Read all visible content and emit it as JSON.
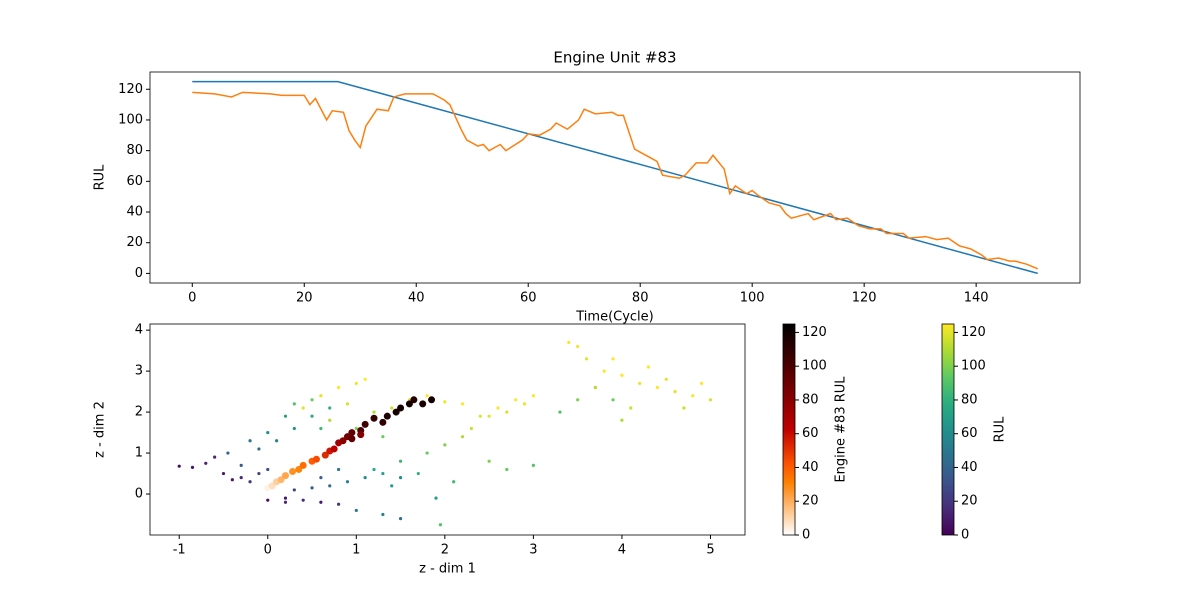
{
  "chart_data": [
    {
      "type": "line",
      "title": "Engine Unit #83",
      "xlabel": "Time(Cycle)",
      "ylabel": "RUL",
      "xlim": [
        -7.55,
        158.55
      ],
      "ylim": [
        -6.25,
        131.25
      ],
      "xticks": [
        0,
        20,
        40,
        60,
        80,
        100,
        120,
        140
      ],
      "yticks": [
        0,
        20,
        40,
        60,
        80,
        100,
        120
      ],
      "series": [
        {
          "color": "#1f77b4",
          "x": [
            0,
            26,
            151
          ],
          "values": [
            125,
            125,
            0
          ]
        },
        {
          "color": "#ff7f0e",
          "x": [
            0,
            4,
            7,
            9,
            14,
            16,
            20,
            21,
            22,
            24,
            25,
            27,
            28,
            29,
            30,
            31,
            33,
            35,
            36,
            38,
            40,
            43,
            45,
            46,
            48,
            49,
            51,
            52,
            53,
            55,
            56,
            59,
            60,
            62,
            64,
            65,
            67,
            69,
            70,
            72,
            75,
            76,
            77,
            79,
            80,
            82,
            83,
            84,
            87,
            88,
            90,
            92,
            93,
            95,
            96,
            97,
            99,
            100,
            101,
            103,
            105,
            106,
            107,
            110,
            111,
            114,
            115,
            117,
            119,
            121,
            123,
            124,
            127,
            128,
            131,
            133,
            135,
            137,
            139,
            141,
            142,
            144,
            146,
            147,
            149,
            151
          ],
          "values": [
            118,
            117,
            115,
            118,
            117,
            116,
            116,
            110,
            114,
            100,
            106,
            105,
            93,
            87,
            82,
            96,
            107,
            106,
            115,
            117,
            117,
            117,
            113,
            110,
            94,
            87,
            83,
            84,
            80,
            84,
            80,
            87,
            91,
            90,
            94,
            98,
            94,
            100,
            107,
            104,
            105,
            103,
            103,
            81,
            79,
            75,
            73,
            64,
            62,
            64,
            72,
            72,
            77,
            68,
            52,
            57,
            52,
            54,
            51,
            46,
            44,
            39,
            36,
            39,
            35,
            39,
            35,
            36,
            31,
            29,
            29,
            26,
            26,
            23,
            24,
            22,
            23,
            18,
            16,
            12,
            9,
            10,
            8,
            8,
            6,
            3
          ]
        }
      ]
    },
    {
      "type": "scatter",
      "xlabel": "z - dim 1",
      "ylabel": "z - dim 2",
      "xlim": [
        -1.33,
        5.39
      ],
      "ylim": [
        -1.0,
        4.15
      ],
      "xticks": [
        -1,
        0,
        1,
        2,
        3,
        4,
        5
      ],
      "yticks": [
        0,
        1,
        2,
        3,
        4
      ],
      "series": [
        {
          "cmap": "viridis",
          "colorbar": {
            "label": "RUL",
            "lim": [
              0,
              125
            ],
            "ticks": [
              0,
              20,
              40,
              60,
              80,
              100,
              120
            ]
          },
          "x": [
            -1.0,
            -0.85,
            -0.7,
            -0.6,
            -0.5,
            -0.4,
            -0.3,
            -0.2,
            -0.1,
            0,
            -0.3,
            -0.45,
            0.0,
            0.2,
            0.4,
            0.6,
            0.8,
            0.3,
            0.5,
            0.7,
            0.9,
            1.1,
            1.3,
            1.5,
            1.0,
            1.3,
            1.5,
            0.8,
            0.6,
            -0.1,
            0.1,
            0.3,
            0.5,
            0.7,
            0.3,
            0.5,
            0.2,
            0.0,
            -0.2,
            0.6,
            0.4,
            0.6,
            0.8,
            1.0,
            1.1,
            0.9,
            0.7,
            1.2,
            1.4,
            1.6,
            1.8,
            2.0,
            2.2,
            1.0,
            1.3,
            1.2,
            1.5,
            1.8,
            2.0,
            2.2,
            1.7,
            1.4,
            2.5,
            2.7,
            3.0,
            2.3,
            2.5,
            2.6,
            2.8,
            2.9,
            2.7,
            3.0,
            2.4,
            3.4,
            3.5,
            3.6,
            3.8,
            4.0,
            4.2,
            4.4,
            4.6,
            4.8,
            5.0,
            3.7,
            3.5,
            3.9,
            4.1,
            4.3,
            4.5,
            3.9,
            4.0,
            3.3,
            4.7,
            4.9,
            0.2,
            1.9,
            1.95,
            2.1
          ],
          "values": [
            0.68,
            0.65,
            0.75,
            0.9,
            0.5,
            0.35,
            0.4,
            0.3,
            0.5,
            0.6,
            0.7,
            1.0,
            -0.15,
            -0.1,
            -0.15,
            -0.2,
            -0.25,
            0.1,
            0.15,
            0.2,
            0.3,
            0.4,
            0.5,
            0.4,
            -0.4,
            -0.5,
            -0.6,
            0.6,
            0.4,
            1.1,
            1.3,
            1.6,
            1.9,
            2.1,
            2.2,
            2.3,
            1.9,
            1.5,
            1.3,
            1.6,
            2.1,
            2.4,
            2.6,
            2.7,
            2.8,
            2.2,
            1.8,
            2.0,
            2.1,
            2.3,
            2.4,
            2.25,
            2.2,
            1.6,
            1.4,
            0.6,
            0.8,
            1.0,
            1.2,
            1.4,
            0.5,
            0.2,
            0.8,
            0.6,
            0.7,
            1.6,
            1.9,
            2.1,
            2.3,
            2.2,
            2.0,
            2.4,
            1.9,
            3.7,
            3.6,
            3.3,
            3.0,
            2.9,
            2.7,
            2.6,
            2.5,
            2.4,
            2.3,
            2.6,
            2.3,
            2.3,
            2.1,
            3.1,
            2.8,
            3.3,
            1.8,
            2.0,
            2.1,
            2.7,
            -0.2,
            -0.1,
            -0.75,
            0.3
          ],
          "c": [
            5,
            8,
            12,
            15,
            10,
            8,
            15,
            20,
            25,
            30,
            35,
            40,
            5,
            10,
            15,
            10,
            20,
            25,
            35,
            45,
            55,
            60,
            70,
            60,
            50,
            55,
            45,
            50,
            40,
            45,
            55,
            65,
            75,
            80,
            90,
            95,
            70,
            60,
            50,
            85,
            120,
            120,
            125,
            122,
            125,
            118,
            110,
            110,
            115,
            120,
            125,
            122,
            125,
            100,
            95,
            75,
            85,
            95,
            100,
            110,
            80,
            70,
            100,
            95,
            90,
            115,
            120,
            125,
            125,
            122,
            118,
            125,
            120,
            125,
            123,
            120,
            125,
            125,
            122,
            125,
            120,
            125,
            118,
            110,
            100,
            95,
            115,
            125,
            120,
            125,
            110,
            90,
            115,
            125,
            15,
            70,
            90,
            85
          ]
        },
        {
          "cmap": "gist_heat_r",
          "colorbar": {
            "label": "Engine #83 RUL",
            "lim": [
              0,
              125
            ],
            "ticks": [
              0,
              20,
              40,
              60,
              80,
              100,
              120
            ]
          },
          "x": [
            0.0,
            0.05,
            0.1,
            0.15,
            0.2,
            0.28,
            0.35,
            0.4,
            0.5,
            0.55,
            0.65,
            0.7,
            0.75,
            0.8,
            0.85,
            0.9,
            0.95,
            1.05,
            1.1,
            1.2,
            1.35,
            1.45,
            1.5,
            1.6,
            1.65,
            1.75,
            1.85,
            1.3,
            0.95,
            1.05
          ],
          "values": [
            0.15,
            0.2,
            0.3,
            0.35,
            0.45,
            0.55,
            0.6,
            0.7,
            0.8,
            0.85,
            0.95,
            1.05,
            1.1,
            1.25,
            1.3,
            1.4,
            1.5,
            1.55,
            1.7,
            1.85,
            1.9,
            2.0,
            2.1,
            2.2,
            2.3,
            2.2,
            2.3,
            1.75,
            1.35,
            1.45
          ],
          "c": [
            3,
            8,
            12,
            18,
            22,
            27,
            30,
            36,
            40,
            44,
            52,
            57,
            64,
            73,
            80,
            87,
            93,
            100,
            104,
            108,
            115,
            117,
            118,
            117,
            114,
            116,
            117,
            110,
            94,
            82
          ]
        }
      ]
    }
  ]
}
